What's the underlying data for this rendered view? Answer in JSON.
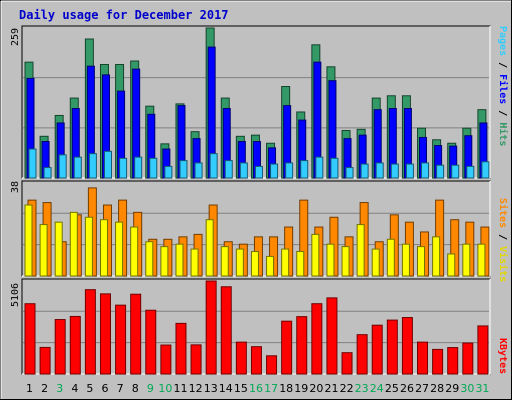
{
  "chart_data": [
    {
      "type": "bar",
      "title": "Daily usage for December 2017",
      "ymax_label": "259",
      "right_legend": [
        {
          "text": "Pages",
          "color": "#33ccff"
        },
        {
          "text": " / ",
          "color": "#000000"
        },
        {
          "text": "Files",
          "color": "#0000ff"
        },
        {
          "text": " / ",
          "color": "#000000"
        },
        {
          "text": "Hits",
          "color": "#339966"
        }
      ],
      "ymax": 259,
      "categories": [
        "1",
        "2",
        "3",
        "4",
        "5",
        "6",
        "7",
        "8",
        "9",
        "10",
        "11",
        "12",
        "13",
        "14",
        "15",
        "16",
        "17",
        "18",
        "19",
        "20",
        "21",
        "22",
        "23",
        "24",
        "25",
        "26",
        "27",
        "28",
        "29",
        "30",
        "31"
      ],
      "series": [
        {
          "name": "Hits",
          "color": "#339966",
          "values": [
            200,
            72,
            108,
            138,
            240,
            196,
            196,
            202,
            124,
            59,
            128,
            80,
            259,
            138,
            72,
            74,
            60,
            158,
            114,
            230,
            192,
            82,
            84,
            138,
            142,
            142,
            86,
            66,
            60,
            86,
            118
          ]
        },
        {
          "name": "Files",
          "color": "#0000ff",
          "values": [
            172,
            63,
            95,
            120,
            193,
            178,
            150,
            188,
            110,
            50,
            125,
            68,
            226,
            120,
            63,
            63,
            52,
            125,
            100,
            200,
            168,
            68,
            74,
            118,
            120,
            120,
            70,
            56,
            55,
            73,
            95
          ]
        },
        {
          "name": "Pages",
          "color": "#33ccff",
          "values": [
            50,
            18,
            40,
            36,
            42,
            46,
            34,
            36,
            34,
            20,
            30,
            26,
            42,
            30,
            26,
            20,
            24,
            26,
            30,
            36,
            34,
            18,
            24,
            26,
            24,
            24,
            26,
            22,
            22,
            20,
            28
          ]
        }
      ]
    },
    {
      "type": "bar",
      "ymax_label": "38",
      "right_legend": [
        {
          "text": "Sites",
          "color": "#ff8800"
        },
        {
          "text": " / ",
          "color": "#000000"
        },
        {
          "text": "Visits",
          "color": "#ffff00"
        }
      ],
      "ymax": 38,
      "categories": [
        "1",
        "2",
        "3",
        "4",
        "5",
        "6",
        "7",
        "8",
        "9",
        "10",
        "11",
        "12",
        "13",
        "14",
        "15",
        "16",
        "17",
        "18",
        "19",
        "20",
        "21",
        "22",
        "23",
        "24",
        "25",
        "26",
        "27",
        "28",
        "29",
        "30",
        "31"
      ],
      "series": [
        {
          "name": "Sites",
          "color": "#ff8800",
          "values": [
            31,
            30,
            14,
            25,
            36,
            29,
            31,
            26,
            15,
            15,
            16,
            17,
            29,
            14,
            13,
            16,
            16,
            20,
            31,
            20,
            24,
            16,
            30,
            14,
            25,
            22,
            18,
            31,
            23,
            22,
            20
          ]
        },
        {
          "name": "Visits",
          "color": "#ffff00",
          "values": [
            29,
            21,
            22,
            26,
            24,
            23,
            22,
            20,
            14,
            12,
            13,
            11,
            23,
            12,
            11,
            10,
            8,
            11,
            10,
            17,
            13,
            12,
            21,
            11,
            15,
            13,
            12,
            16,
            9,
            13,
            13
          ]
        }
      ]
    },
    {
      "type": "bar",
      "ymax_label": "5106",
      "right_legend": [
        {
          "text": "KBytes",
          "color": "#ff0000"
        }
      ],
      "ymax": 5106,
      "categories": [
        "1",
        "2",
        "3",
        "4",
        "5",
        "6",
        "7",
        "8",
        "9",
        "10",
        "11",
        "12",
        "13",
        "14",
        "15",
        "16",
        "17",
        "18",
        "19",
        "20",
        "21",
        "22",
        "23",
        "24",
        "25",
        "26",
        "27",
        "28",
        "29",
        "30",
        "31"
      ],
      "series": [
        {
          "name": "KBytes",
          "color": "#ff0000",
          "values": [
            3860,
            1460,
            2990,
            3160,
            4630,
            4400,
            3780,
            4380,
            3500,
            1590,
            2780,
            1600,
            5106,
            4790,
            1750,
            1500,
            1000,
            2900,
            3150,
            3860,
            4180,
            1170,
            2160,
            2680,
            2960,
            3100,
            1750,
            1350,
            1450,
            1700,
            2640
          ]
        }
      ]
    }
  ],
  "x_axis_labels": [
    {
      "text": "1",
      "color": "#000000"
    },
    {
      "text": "2",
      "color": "#000000"
    },
    {
      "text": "3",
      "color": "#00aa55"
    },
    {
      "text": "4",
      "color": "#000000"
    },
    {
      "text": "5",
      "color": "#000000"
    },
    {
      "text": "6",
      "color": "#000000"
    },
    {
      "text": "7",
      "color": "#000000"
    },
    {
      "text": "8",
      "color": "#000000"
    },
    {
      "text": "9",
      "color": "#00aa55"
    },
    {
      "text": "10",
      "color": "#00aa55"
    },
    {
      "text": "11",
      "color": "#000000"
    },
    {
      "text": "12",
      "color": "#000000"
    },
    {
      "text": "13",
      "color": "#000000"
    },
    {
      "text": "14",
      "color": "#000000"
    },
    {
      "text": "15",
      "color": "#000000"
    },
    {
      "text": "16",
      "color": "#00aa55"
    },
    {
      "text": "17",
      "color": "#00aa55"
    },
    {
      "text": "18",
      "color": "#000000"
    },
    {
      "text": "19",
      "color": "#000000"
    },
    {
      "text": "20",
      "color": "#000000"
    },
    {
      "text": "21",
      "color": "#000000"
    },
    {
      "text": "22",
      "color": "#000000"
    },
    {
      "text": "23",
      "color": "#00aa55"
    },
    {
      "text": "24",
      "color": "#00aa55"
    },
    {
      "text": "25",
      "color": "#000000"
    },
    {
      "text": "26",
      "color": "#000000"
    },
    {
      "text": "27",
      "color": "#000000"
    },
    {
      "text": "28",
      "color": "#000000"
    },
    {
      "text": "29",
      "color": "#000000"
    },
    {
      "text": "30",
      "color": "#00aa55"
    },
    {
      "text": "31",
      "color": "#00aa55"
    }
  ]
}
